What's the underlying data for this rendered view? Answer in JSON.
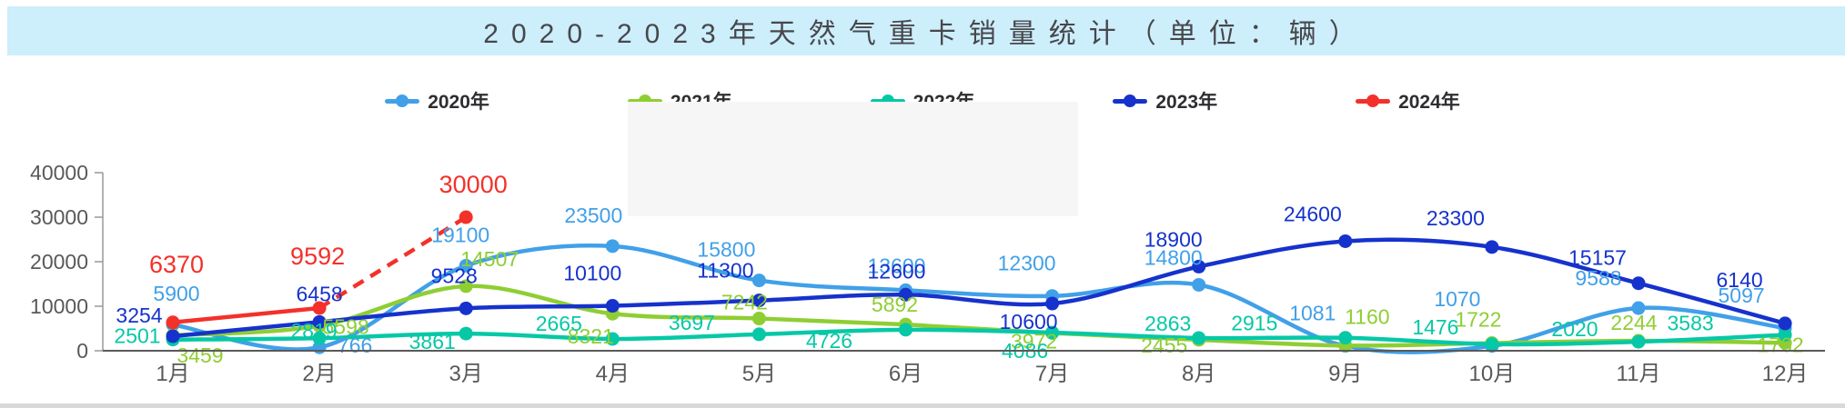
{
  "title": {
    "text": "2020-2023年天然气重卡销量统计（单位：辆）"
  },
  "legend": {
    "items": [
      {
        "label": "2020年",
        "color": "#41A0E8"
      },
      {
        "label": "2021年",
        "color": "#8FCE33"
      },
      {
        "label": "2022年",
        "color": "#06C8A6"
      },
      {
        "label": "2023年",
        "color": "#1632CC"
      },
      {
        "label": "2024年",
        "color": "#F3312A"
      }
    ]
  },
  "chart_data": {
    "type": "line",
    "title": "2020-2023年天然气重卡销量统计（单位：辆）",
    "categories": [
      "1月",
      "2月",
      "3月",
      "4月",
      "5月",
      "6月",
      "7月",
      "8月",
      "9月",
      "10月",
      "11月",
      "12月"
    ],
    "xlabel": "",
    "ylabel": "",
    "y_ticks": [
      0,
      10000,
      20000,
      30000,
      40000
    ],
    "ylim": [
      0,
      40000
    ],
    "grid": false,
    "legend_position": "top",
    "axis_color": "#999999",
    "tick_label_color": "#595959",
    "series": [
      {
        "name": "2020年",
        "color": "#41A0E8",
        "smooth": true,
        "values": [
          5900,
          766,
          19100,
          23500,
          15800,
          13600,
          12300,
          14800,
          1081,
          1070,
          9588,
          5097
        ],
        "label_offsets": [
          [
            4,
            -26
          ],
          [
            39,
            6
          ],
          [
            -6,
            -26
          ],
          [
            -21,
            -26
          ],
          [
            -36,
            -26
          ],
          [
            -10,
            -19
          ],
          [
            -28,
            -28
          ],
          [
            -28,
            -22
          ],
          [
            -36,
            -28
          ],
          [
            -38,
            -44
          ],
          [
            -44,
            -25
          ],
          [
            -48,
            -28
          ]
        ]
      },
      {
        "name": "2021年",
        "color": "#8FCE33",
        "smooth": true,
        "values": [
          3459,
          5598,
          14507,
          8321,
          7242,
          5892,
          3972,
          2455,
          1160,
          1722,
          2244,
          1762
        ],
        "label_offsets": [
          [
            30,
            30
          ],
          [
            29,
            9
          ],
          [
            26,
            -22
          ],
          [
            -24,
            33
          ],
          [
            -16,
            -10
          ],
          [
            -12,
            -14
          ],
          [
            -20,
            17
          ],
          [
            -38,
            14
          ],
          [
            24,
            -24
          ],
          [
            -15,
            -18
          ],
          [
            -5,
            -12
          ],
          [
            -5,
            10
          ]
        ]
      },
      {
        "name": "2022年",
        "color": "#06C8A6",
        "smooth": true,
        "values": [
          2501,
          2819,
          3861,
          2665,
          3697,
          4726,
          4086,
          2863,
          2915,
          1476,
          2020,
          3583
        ],
        "label_offsets": [
          [
            -39,
            4
          ],
          [
            -6,
            0
          ],
          [
            -37,
            17
          ],
          [
            -59,
            -9
          ],
          [
            -74,
            -5
          ],
          [
            -84,
            20
          ],
          [
            -30,
            28
          ],
          [
            -34,
            -8
          ],
          [
            -100,
            -8
          ],
          [
            -62,
            -11
          ],
          [
            -70,
            -6
          ],
          [
            -104,
            -5
          ]
        ]
      },
      {
        "name": "2023年",
        "color": "#1632CC",
        "smooth": true,
        "values": [
          3254,
          6458,
          9528,
          10100,
          11300,
          12600,
          10600,
          18900,
          24600,
          23300,
          15157,
          6140
        ],
        "label_offsets": [
          [
            -37,
            -15
          ],
          [
            0,
            -23
          ],
          [
            -13,
            -28
          ],
          [
            -22,
            -28
          ],
          [
            -37,
            -25
          ],
          [
            -10,
            -18
          ],
          [
            -26,
            28
          ],
          [
            -28,
            -22
          ],
          [
            -36,
            -22
          ],
          [
            -40,
            -24
          ],
          [
            -45,
            -20
          ],
          [
            -50,
            -40
          ]
        ]
      },
      {
        "name": "2024年",
        "color": "#F3312A",
        "smooth": false,
        "dashed_from_index": 1,
        "label_size": 27,
        "values": [
          6370,
          9592,
          30000
        ],
        "label_offsets": [
          [
            4,
            -55
          ],
          [
            -2,
            -48
          ],
          [
            8,
            -27
          ]
        ]
      }
    ]
  }
}
